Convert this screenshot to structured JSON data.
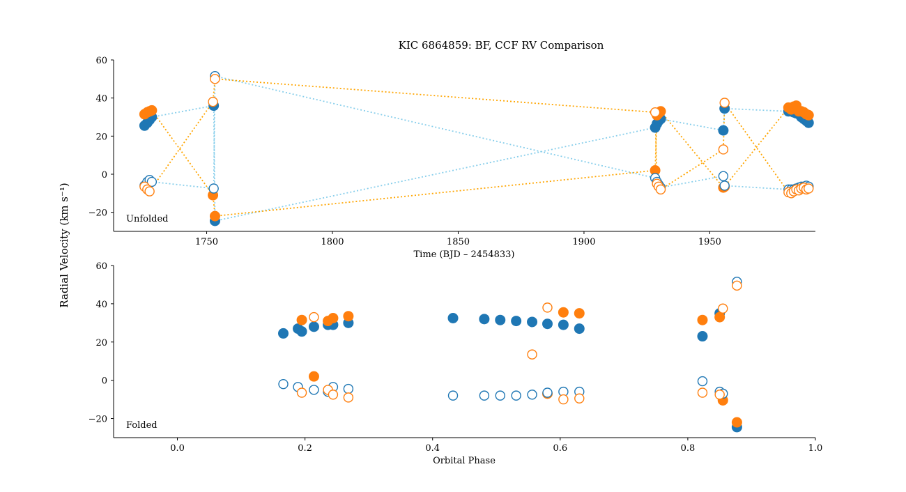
{
  "chart_data": {
    "type": "scatter",
    "title": "KIC 6864859: BF, CCF RV Comparison",
    "ylabel": "Radial Velocity (km s⁻¹)",
    "colors": {
      "primary": "#1f77b4",
      "secondary": "#ff7f0e",
      "primary_line": "#87ceeb",
      "secondary_line": "#ffa500"
    },
    "panels": [
      {
        "label": "Unfolded",
        "xlabel": "Time (BJD – 2454833)",
        "xlim": [
          1713,
          1992
        ],
        "ylim": [
          -30,
          60
        ],
        "xticks": [
          1750,
          1800,
          1850,
          1900,
          1950
        ],
        "yticks": [
          -20,
          0,
          20,
          40,
          60
        ],
        "series": [
          {
            "id": "bf-primary",
            "marker": "filled",
            "color": "primary",
            "line": "primary_line",
            "points": [
              [
                1725.3,
                25.5
              ],
              [
                1726.4,
                27
              ],
              [
                1727.3,
                28.5
              ],
              [
                1728.2,
                30
              ],
              [
                1752.8,
                36
              ],
              [
                1753.3,
                -24.5
              ],
              [
                1928.3,
                24.5
              ],
              [
                1929.0,
                26.5
              ],
              [
                1929.7,
                28
              ],
              [
                1930.5,
                29
              ],
              [
                1955.4,
                23
              ],
              [
                1955.9,
                34.5
              ],
              [
                1981.3,
                33
              ],
              [
                1982.4,
                33
              ],
              [
                1983.4,
                32.5
              ],
              [
                1984.4,
                32
              ],
              [
                1985.4,
                31.5
              ],
              [
                1986.4,
                30
              ],
              [
                1987.4,
                29
              ],
              [
                1988.4,
                28
              ],
              [
                1989.3,
                27
              ]
            ]
          },
          {
            "id": "bf-secondary",
            "marker": "open",
            "color": "primary",
            "line": "primary_line",
            "points": [
              [
                1725.3,
                -6
              ],
              [
                1726.4,
                -4
              ],
              [
                1727.3,
                -3
              ],
              [
                1728.2,
                -4
              ],
              [
                1752.8,
                -7.5
              ],
              [
                1753.3,
                51.5
              ],
              [
                1928.3,
                -2
              ],
              [
                1929.0,
                -4
              ],
              [
                1929.7,
                -5.5
              ],
              [
                1930.5,
                -7
              ],
              [
                1955.4,
                -1
              ],
              [
                1955.9,
                -6
              ],
              [
                1981.3,
                -8
              ],
              [
                1982.4,
                -8
              ],
              [
                1983.4,
                -8
              ],
              [
                1984.4,
                -7.5
              ],
              [
                1985.4,
                -7
              ],
              [
                1986.4,
                -6.5
              ],
              [
                1987.4,
                -6.5
              ],
              [
                1988.4,
                -6
              ],
              [
                1989.3,
                -6.5
              ]
            ]
          },
          {
            "id": "ccf-primary",
            "marker": "filled",
            "color": "secondary",
            "line": "secondary_line",
            "points": [
              [
                1725.3,
                31.5
              ],
              [
                1726.4,
                32.5
              ],
              [
                1727.3,
                33
              ],
              [
                1728.2,
                33.5
              ],
              [
                1752.5,
                -11
              ],
              [
                1753.3,
                -22
              ],
              [
                1928.3,
                2
              ],
              [
                1929.0,
                31
              ],
              [
                1929.7,
                32
              ],
              [
                1930.5,
                33
              ],
              [
                1955.4,
                -7
              ],
              [
                1955.9,
                -6.5
              ],
              [
                1981.3,
                35
              ],
              [
                1982.4,
                34
              ],
              [
                1983.4,
                35.5
              ],
              [
                1984.4,
                36
              ],
              [
                1985.4,
                33
              ],
              [
                1986.4,
                33
              ],
              [
                1987.4,
                32.5
              ],
              [
                1988.4,
                31.5
              ],
              [
                1989.3,
                31
              ]
            ]
          },
          {
            "id": "ccf-secondary",
            "marker": "open",
            "color": "secondary",
            "line": "secondary_line",
            "points": [
              [
                1725.3,
                -6.5
              ],
              [
                1726.4,
                -8
              ],
              [
                1727.3,
                -9
              ],
              [
                1752.5,
                38
              ],
              [
                1753.3,
                50
              ],
              [
                1928.3,
                32.5
              ],
              [
                1929.0,
                -5
              ],
              [
                1929.7,
                -6.5
              ],
              [
                1930.5,
                -8
              ],
              [
                1955.4,
                13
              ],
              [
                1955.9,
                37.5
              ],
              [
                1981.3,
                -9.5
              ],
              [
                1982.4,
                -10
              ],
              [
                1983.4,
                -9
              ],
              [
                1984.4,
                -8
              ],
              [
                1985.4,
                -8.5
              ],
              [
                1986.4,
                -7.5
              ],
              [
                1987.4,
                -7
              ],
              [
                1988.4,
                -8
              ],
              [
                1989.3,
                -7.5
              ]
            ]
          }
        ]
      },
      {
        "label": "Folded",
        "xlabel": "Orbital Phase",
        "xlim": [
          -0.1,
          1.0
        ],
        "ylim": [
          -30,
          60
        ],
        "xticks": [
          0.0,
          0.2,
          0.4,
          0.6,
          0.8,
          1.0
        ],
        "xtick_labels": [
          "0.0",
          "0.2",
          "0.4",
          "0.6",
          "0.8",
          "1.0"
        ],
        "yticks": [
          -20,
          0,
          20,
          40,
          60
        ],
        "series": [
          {
            "id": "bf-primary",
            "marker": "filled",
            "color": "primary",
            "points": [
              [
                0.166,
                24.5
              ],
              [
                0.189,
                27
              ],
              [
                0.195,
                25.5
              ],
              [
                0.214,
                28
              ],
              [
                0.236,
                29
              ],
              [
                0.244,
                29
              ],
              [
                0.268,
                30
              ],
              [
                0.432,
                32.5
              ],
              [
                0.481,
                32
              ],
              [
                0.506,
                31.5
              ],
              [
                0.531,
                31
              ],
              [
                0.556,
                30.5
              ],
              [
                0.58,
                29.5
              ],
              [
                0.605,
                29
              ],
              [
                0.63,
                27
              ],
              [
                0.823,
                23
              ],
              [
                0.85,
                35
              ],
              [
                0.877,
                -24.5
              ]
            ]
          },
          {
            "id": "bf-secondary",
            "marker": "open",
            "color": "primary",
            "points": [
              [
                0.166,
                -2
              ],
              [
                0.189,
                -3.5
              ],
              [
                0.214,
                -5
              ],
              [
                0.236,
                -6
              ],
              [
                0.244,
                -3.5
              ],
              [
                0.268,
                -4.5
              ],
              [
                0.432,
                -8
              ],
              [
                0.481,
                -8
              ],
              [
                0.506,
                -8
              ],
              [
                0.531,
                -8
              ],
              [
                0.556,
                -7.5
              ],
              [
                0.58,
                -6.5
              ],
              [
                0.605,
                -6
              ],
              [
                0.63,
                -6
              ],
              [
                0.823,
                -0.5
              ],
              [
                0.85,
                -6
              ],
              [
                0.855,
                -7
              ],
              [
                0.877,
                51.5
              ]
            ]
          },
          {
            "id": "ccf-primary",
            "marker": "filled",
            "color": "secondary",
            "points": [
              [
                0.195,
                31.5
              ],
              [
                0.214,
                2
              ],
              [
                0.236,
                31
              ],
              [
                0.244,
                32.5
              ],
              [
                0.268,
                33.5
              ],
              [
                0.58,
                -7
              ],
              [
                0.605,
                35.5
              ],
              [
                0.63,
                35
              ],
              [
                0.823,
                31.5
              ],
              [
                0.85,
                33
              ],
              [
                0.855,
                -10.5
              ],
              [
                0.877,
                -22
              ]
            ]
          },
          {
            "id": "ccf-secondary",
            "marker": "open",
            "color": "secondary",
            "points": [
              [
                0.195,
                -6.5
              ],
              [
                0.214,
                33
              ],
              [
                0.236,
                -5
              ],
              [
                0.244,
                -7.5
              ],
              [
                0.268,
                -9
              ],
              [
                0.556,
                13.5
              ],
              [
                0.58,
                38
              ],
              [
                0.605,
                -10
              ],
              [
                0.63,
                -9.5
              ],
              [
                0.823,
                -6.5
              ],
              [
                0.85,
                -7.5
              ],
              [
                0.855,
                37.5
              ],
              [
                0.877,
                49.5
              ]
            ]
          }
        ]
      }
    ]
  }
}
